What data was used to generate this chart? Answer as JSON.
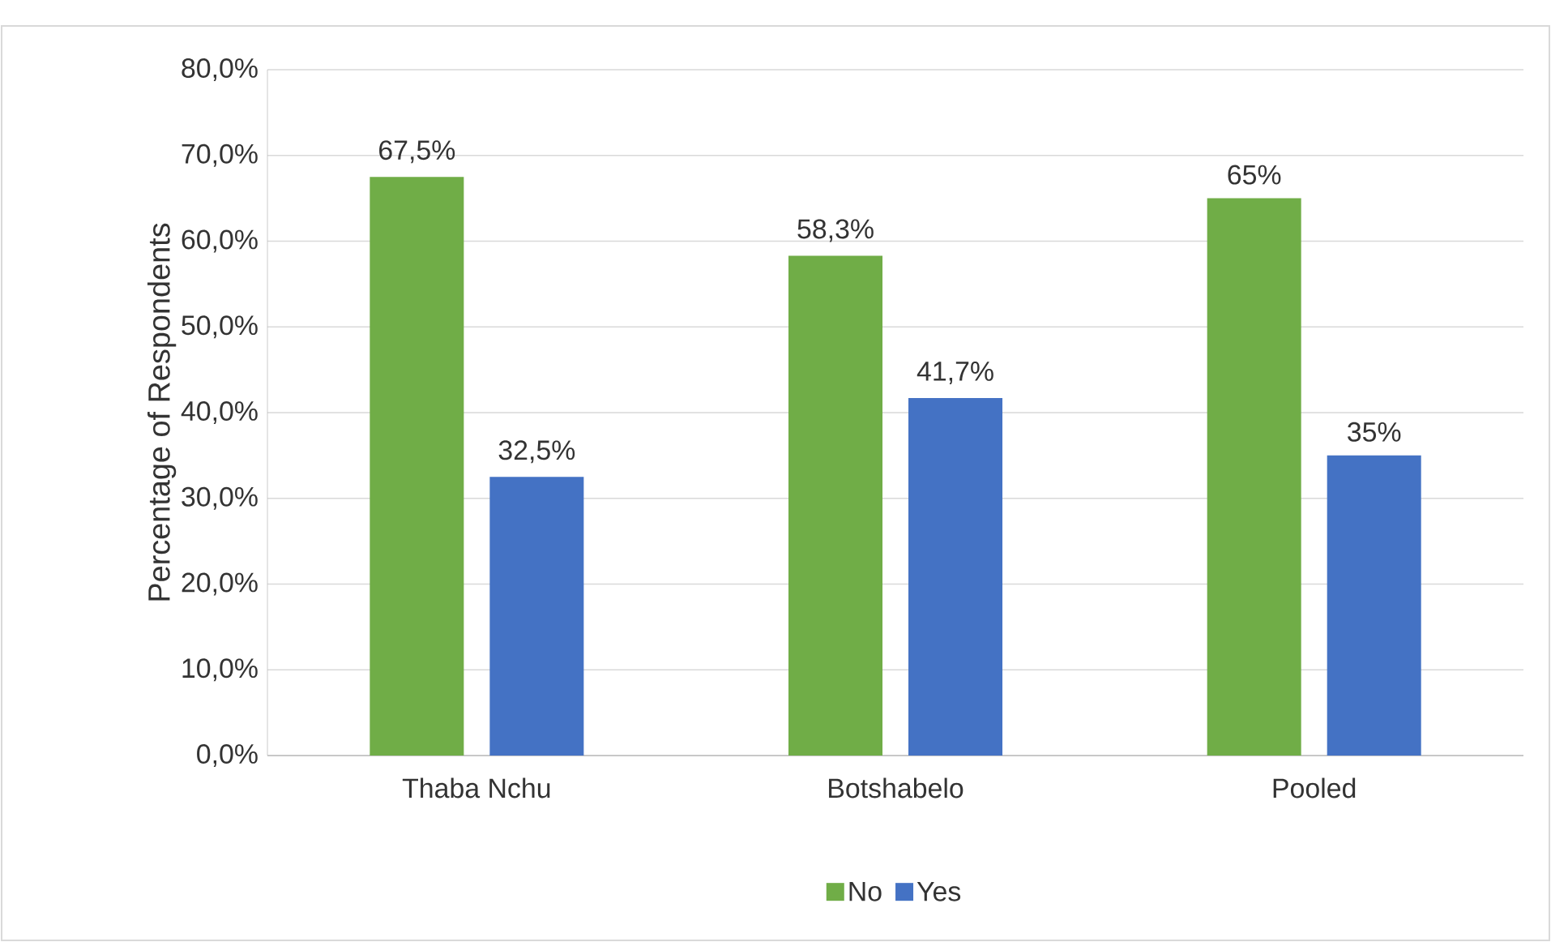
{
  "chart_data": {
    "type": "bar",
    "ylabel": "Percentage of Respondents",
    "categories": [
      "Thaba Nchu",
      "Botshabelo",
      "Pooled"
    ],
    "series": [
      {
        "name": "No",
        "color": "#70ad47",
        "values": [
          67.5,
          58.3,
          65
        ],
        "value_labels": [
          "67,5%",
          "58,3%",
          "65%"
        ]
      },
      {
        "name": "Yes",
        "color": "#4472c4",
        "values": [
          32.5,
          41.7,
          35
        ],
        "value_labels": [
          "32,5%",
          "41,7%",
          "35%"
        ]
      }
    ],
    "ylim": [
      0,
      80
    ],
    "yticks": [
      {
        "value": 0,
        "label": "0,0%"
      },
      {
        "value": 10,
        "label": "10,0%"
      },
      {
        "value": 20,
        "label": "20,0%"
      },
      {
        "value": 30,
        "label": "30,0%"
      },
      {
        "value": 40,
        "label": "40,0%"
      },
      {
        "value": 50,
        "label": "50,0%"
      },
      {
        "value": 60,
        "label": "60,0%"
      },
      {
        "value": 70,
        "label": "70,0%"
      },
      {
        "value": 80,
        "label": "80,0%"
      }
    ],
    "grid": "y",
    "legend": "bottom"
  }
}
